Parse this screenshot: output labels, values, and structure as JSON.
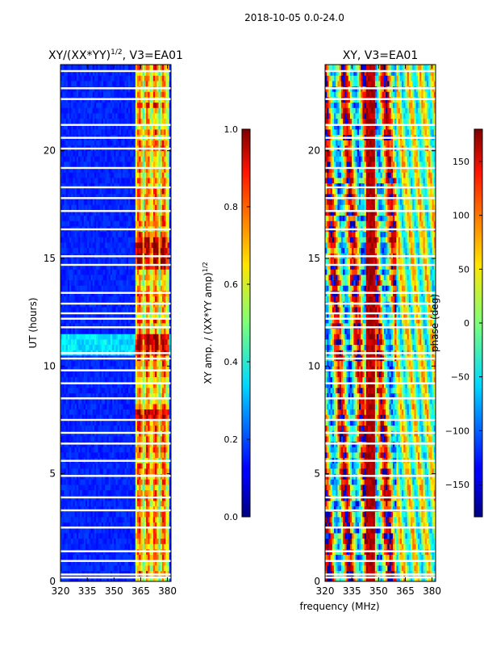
{
  "figure": {
    "suptitle": "2018-10-05 0.0-24.0",
    "xlabel": "frequency (MHz)"
  },
  "chart_data": [
    {
      "type": "heatmap",
      "title_main": "XY/(XX*YY)",
      "title_sup": "1/2",
      "title_rest": ", V3=EA01",
      "ylabel": "UT (hours)",
      "xlim": [
        320,
        382
      ],
      "ylim": [
        0,
        24
      ],
      "xticks": [
        320,
        335,
        350,
        365,
        380
      ],
      "yticks": [
        0,
        5,
        10,
        15,
        20
      ],
      "colorbar": {
        "label_main": "XY amp. / (XX*YY amp)",
        "label_sup": "1/2",
        "range": [
          0.0,
          1.0
        ],
        "ticks": [
          "0.0",
          "0.2",
          "0.4",
          "0.6",
          "0.8",
          "1.0"
        ],
        "tick_values": [
          0.0,
          0.2,
          0.4,
          0.6,
          0.8,
          1.0
        ]
      }
    },
    {
      "type": "heatmap",
      "title_main": "XY, V3=EA01",
      "ylabel": "",
      "xlim": [
        320,
        382
      ],
      "ylim": [
        0,
        24
      ],
      "xticks": [
        320,
        335,
        350,
        365,
        380
      ],
      "yticks": [
        0,
        5,
        10,
        15,
        20
      ],
      "colorbar": {
        "label_main": "phase (deg)",
        "range": [
          -180,
          180
        ],
        "ticks": [
          "−150",
          "−100",
          "−50",
          "0",
          "50",
          "100",
          "150"
        ],
        "tick_values": [
          -150,
          -100,
          -50,
          0,
          50,
          100,
          150
        ]
      }
    }
  ]
}
